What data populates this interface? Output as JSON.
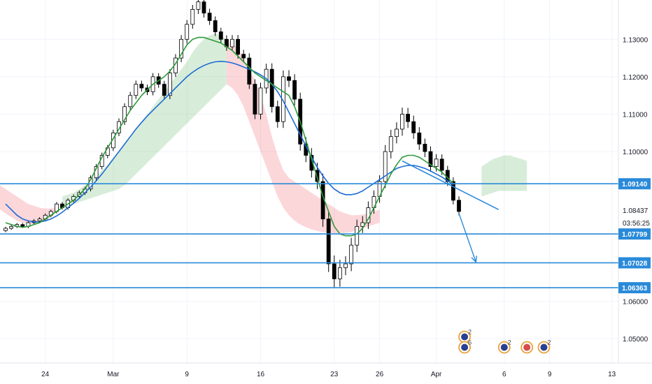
{
  "chart_data": {
    "type": "candlestick",
    "title": "",
    "xlabel": "",
    "ylabel": "",
    "ylim": [
      1.0435,
      1.1405
    ],
    "y_ticks": [
      {
        "value": 1.13,
        "label": "1.13000"
      },
      {
        "value": 1.12,
        "label": "1.12000"
      },
      {
        "value": 1.11,
        "label": "1.11000"
      },
      {
        "value": 1.1,
        "label": "1.10000"
      },
      {
        "value": 1.06,
        "label": "1.06000"
      },
      {
        "value": 1.05,
        "label": "1.05000"
      }
    ],
    "x_ticks": [
      {
        "index": 7,
        "label": "24"
      },
      {
        "index": 19,
        "label": "Mar"
      },
      {
        "index": 32,
        "label": "9"
      },
      {
        "index": 45,
        "label": "16"
      },
      {
        "index": 58,
        "label": "23"
      },
      {
        "index": 66,
        "label": "26"
      },
      {
        "index": 76,
        "label": "Apr"
      },
      {
        "index": 88,
        "label": "6"
      },
      {
        "index": 96,
        "label": "9"
      },
      {
        "index": 107,
        "label": "13"
      }
    ],
    "current_price": {
      "value": 1.08437,
      "label": "1.08437",
      "countdown": "03:56:25"
    },
    "horizontal_levels": [
      {
        "value": 1.0914,
        "label": "1.09140"
      },
      {
        "value": 1.07799,
        "label": "1.07799"
      },
      {
        "value": 1.07028,
        "label": "1.07028"
      },
      {
        "value": 1.06363,
        "label": "1.06363"
      }
    ],
    "trendline": {
      "start": {
        "index": 70,
        "value": 1.0975
      },
      "end": {
        "index": 87,
        "value": 1.0845
      }
    },
    "projection_arrow": {
      "start": {
        "index": 80,
        "value": 1.0835
      },
      "end": {
        "index": 83,
        "value": 1.0705
      }
    },
    "candles": {
      "closes": [
        1.0795,
        1.08,
        1.0805,
        1.08,
        1.081,
        1.0815,
        1.082,
        1.083,
        1.084,
        1.086,
        1.085,
        1.087,
        1.088,
        1.089,
        1.09,
        1.093,
        1.096,
        1.099,
        1.101,
        1.105,
        1.108,
        1.112,
        1.115,
        1.118,
        1.117,
        1.116,
        1.12,
        1.118,
        1.115,
        1.121,
        1.125,
        1.13,
        1.134,
        1.138,
        1.14,
        1.137,
        1.135,
        1.132,
        1.13,
        1.128,
        1.13,
        1.126,
        1.125,
        1.118,
        1.11,
        1.117,
        1.122,
        1.112,
        1.108,
        1.12,
        1.119,
        1.114,
        1.102,
        1.099,
        1.095,
        1.092,
        1.082,
        1.07,
        1.066,
        1.069,
        1.07,
        1.075,
        1.08,
        1.081,
        1.085,
        1.088,
        1.092,
        1.1,
        1.104,
        1.106,
        1.11,
        1.108,
        1.105,
        1.102,
        1.1,
        1.096,
        1.098,
        1.095,
        1.092,
        1.087,
        1.084
      ],
      "ranges": [
        0.0012,
        0.0012,
        0.0012,
        0.0012,
        0.0013,
        0.0013,
        0.0013,
        0.0013,
        0.0014,
        0.0015,
        0.0014,
        0.0015,
        0.0016,
        0.0016,
        0.0017,
        0.0018,
        0.002,
        0.0021,
        0.0022,
        0.0024,
        0.0025,
        0.0026,
        0.0027,
        0.0028,
        0.0027,
        0.0026,
        0.0028,
        0.0027,
        0.0026,
        0.0029,
        0.003,
        0.0032,
        0.0033,
        0.0034,
        0.0035,
        0.0034,
        0.0033,
        0.0032,
        0.0031,
        0.0031,
        0.0032,
        0.0033,
        0.0034,
        0.0036,
        0.0038,
        0.004,
        0.0042,
        0.0045,
        0.0046,
        0.0048,
        0.005,
        0.0048,
        0.005,
        0.0052,
        0.0055,
        0.0058,
        0.006,
        0.0062,
        0.0064,
        0.006,
        0.0058,
        0.0056,
        0.0052,
        0.005,
        0.0048,
        0.0046,
        0.0048,
        0.005,
        0.0052,
        0.0052,
        0.005,
        0.0048,
        0.0046,
        0.0044,
        0.0042,
        0.004,
        0.0038,
        0.0036,
        0.0034,
        0.0032,
        0.003
      ]
    },
    "ma_fast_values": [
      1.081,
      1.0805,
      1.08,
      1.0798,
      1.08,
      1.0805,
      1.081,
      1.082,
      1.083,
      1.084,
      1.085,
      1.086,
      1.087,
      1.0885,
      1.09,
      1.0925,
      1.0955,
      1.0985,
      1.101,
      1.1035,
      1.106,
      1.1085,
      1.111,
      1.113,
      1.115,
      1.1165,
      1.118,
      1.119,
      1.12,
      1.1215,
      1.1235,
      1.126,
      1.1285,
      1.13,
      1.1305,
      1.1305,
      1.13,
      1.1295,
      1.129,
      1.128,
      1.127,
      1.1255,
      1.124,
      1.1225,
      1.121,
      1.12,
      1.119,
      1.118,
      1.117,
      1.116,
      1.115,
      1.112,
      1.108,
      1.103,
      1.098,
      1.093,
      1.088,
      1.084,
      1.08,
      1.078,
      1.0775,
      1.0775,
      1.078,
      1.0795,
      1.082,
      1.085,
      1.088,
      1.091,
      1.094,
      1.0965,
      1.0985,
      1.099,
      1.099,
      1.0985,
      1.0975,
      1.0965,
      1.0955,
      1.0945,
      1.093,
      1.0915
    ],
    "ma_slow_values": [
      1.086,
      1.0845,
      1.083,
      1.082,
      1.0815,
      1.0812,
      1.0812,
      1.0815,
      1.082,
      1.0828,
      1.0838,
      1.085,
      1.0862,
      1.0875,
      1.089,
      1.0905,
      1.0922,
      1.094,
      1.096,
      1.098,
      1.1,
      1.102,
      1.104,
      1.106,
      1.1078,
      1.1095,
      1.111,
      1.1125,
      1.114,
      1.1155,
      1.117,
      1.1185,
      1.12,
      1.1212,
      1.1222,
      1.123,
      1.1236,
      1.124,
      1.1241,
      1.124,
      1.1237,
      1.1232,
      1.1226,
      1.122,
      1.1213,
      1.1205,
      1.1195,
      1.118,
      1.116,
      1.1135,
      1.1105,
      1.1075,
      1.1045,
      1.1015,
      1.0985,
      1.0958,
      1.0935,
      1.0915,
      1.09,
      1.089,
      1.0885,
      1.0885,
      1.0888,
      1.0895,
      1.0905,
      1.0915,
      1.0925,
      1.0935,
      1.0945,
      1.0955,
      1.096,
      1.0963,
      1.0963,
      1.096,
      1.0955,
      1.0948,
      1.094,
      1.0932,
      1.0922,
      1.0912
    ],
    "cloud_segments": [
      {
        "color": "red",
        "start": -4,
        "top": [
          1.099,
          1.096,
          1.093,
          1.091,
          1.09,
          1.089,
          1.088,
          1.087,
          1.086,
          1.0855,
          1.085,
          1.0848,
          1.0848,
          1.085
        ],
        "bottom": [
          1.09,
          1.088,
          1.086,
          1.0845,
          1.0835,
          1.0825,
          1.0815,
          1.081,
          1.0808,
          1.0808,
          1.081,
          1.0815,
          1.0825,
          1.084
        ]
      },
      {
        "color": "green",
        "start": 10,
        "top": [
          1.088,
          1.0885,
          1.089,
          1.09,
          1.091,
          1.092,
          1.0935,
          1.095,
          1.0965,
          1.0985,
          1.1,
          1.102,
          1.104,
          1.106,
          1.108,
          1.11,
          1.112,
          1.114,
          1.116,
          1.118,
          1.12,
          1.122,
          1.124,
          1.1265,
          1.1285,
          1.13,
          1.131,
          1.1315,
          1.131,
          1.13
        ],
        "bottom": [
          1.085,
          1.0855,
          1.086,
          1.0865,
          1.087,
          1.0875,
          1.088,
          1.0885,
          1.089,
          1.0895,
          1.09,
          1.091,
          1.0925,
          1.094,
          1.0955,
          1.097,
          1.0985,
          1.1,
          1.1015,
          1.103,
          1.1045,
          1.106,
          1.1075,
          1.109,
          1.1105,
          1.112,
          1.1135,
          1.115,
          1.1165,
          1.118
        ]
      },
      {
        "color": "red",
        "start": 39,
        "top": [
          1.13,
          1.129,
          1.1275,
          1.125,
          1.122,
          1.119,
          1.115,
          1.11,
          1.104,
          1.099,
          1.095,
          1.093,
          1.092,
          1.091,
          1.09,
          1.089,
          1.088,
          1.087,
          1.086,
          1.085,
          1.084,
          1.0835,
          1.083,
          1.083,
          1.0832,
          1.0835,
          1.084,
          1.0845
        ],
        "bottom": [
          1.118,
          1.117,
          1.115,
          1.112,
          1.108,
          1.104,
          1.1,
          1.096,
          1.092,
          1.088,
          1.085,
          1.083,
          1.0815,
          1.0805,
          1.0798,
          1.0792,
          1.0788,
          1.0785,
          1.0783,
          1.0782,
          1.0782,
          1.0783,
          1.0785,
          1.079,
          1.0795,
          1.08,
          1.0805,
          1.081
        ]
      },
      {
        "color": "green",
        "start": 84,
        "top": [
          1.096,
          1.097,
          1.098,
          1.0985,
          1.099,
          1.099,
          1.0985,
          1.098,
          1.0975
        ],
        "bottom": [
          1.088,
          1.0885,
          1.089,
          1.0895,
          1.0895,
          1.0895,
          1.0895,
          1.0895,
          1.0895
        ]
      }
    ],
    "event_markers": [
      {
        "index": 81,
        "value": 1.0505,
        "badge": "2"
      },
      {
        "index": 81,
        "value": 1.0477,
        "badge": "6"
      },
      {
        "index": 88,
        "value": 1.0477,
        "badge": "2"
      },
      {
        "index": 92,
        "value": 1.0477,
        "badge": ""
      },
      {
        "index": 95,
        "value": 1.0477,
        "badge": "2"
      }
    ]
  }
}
